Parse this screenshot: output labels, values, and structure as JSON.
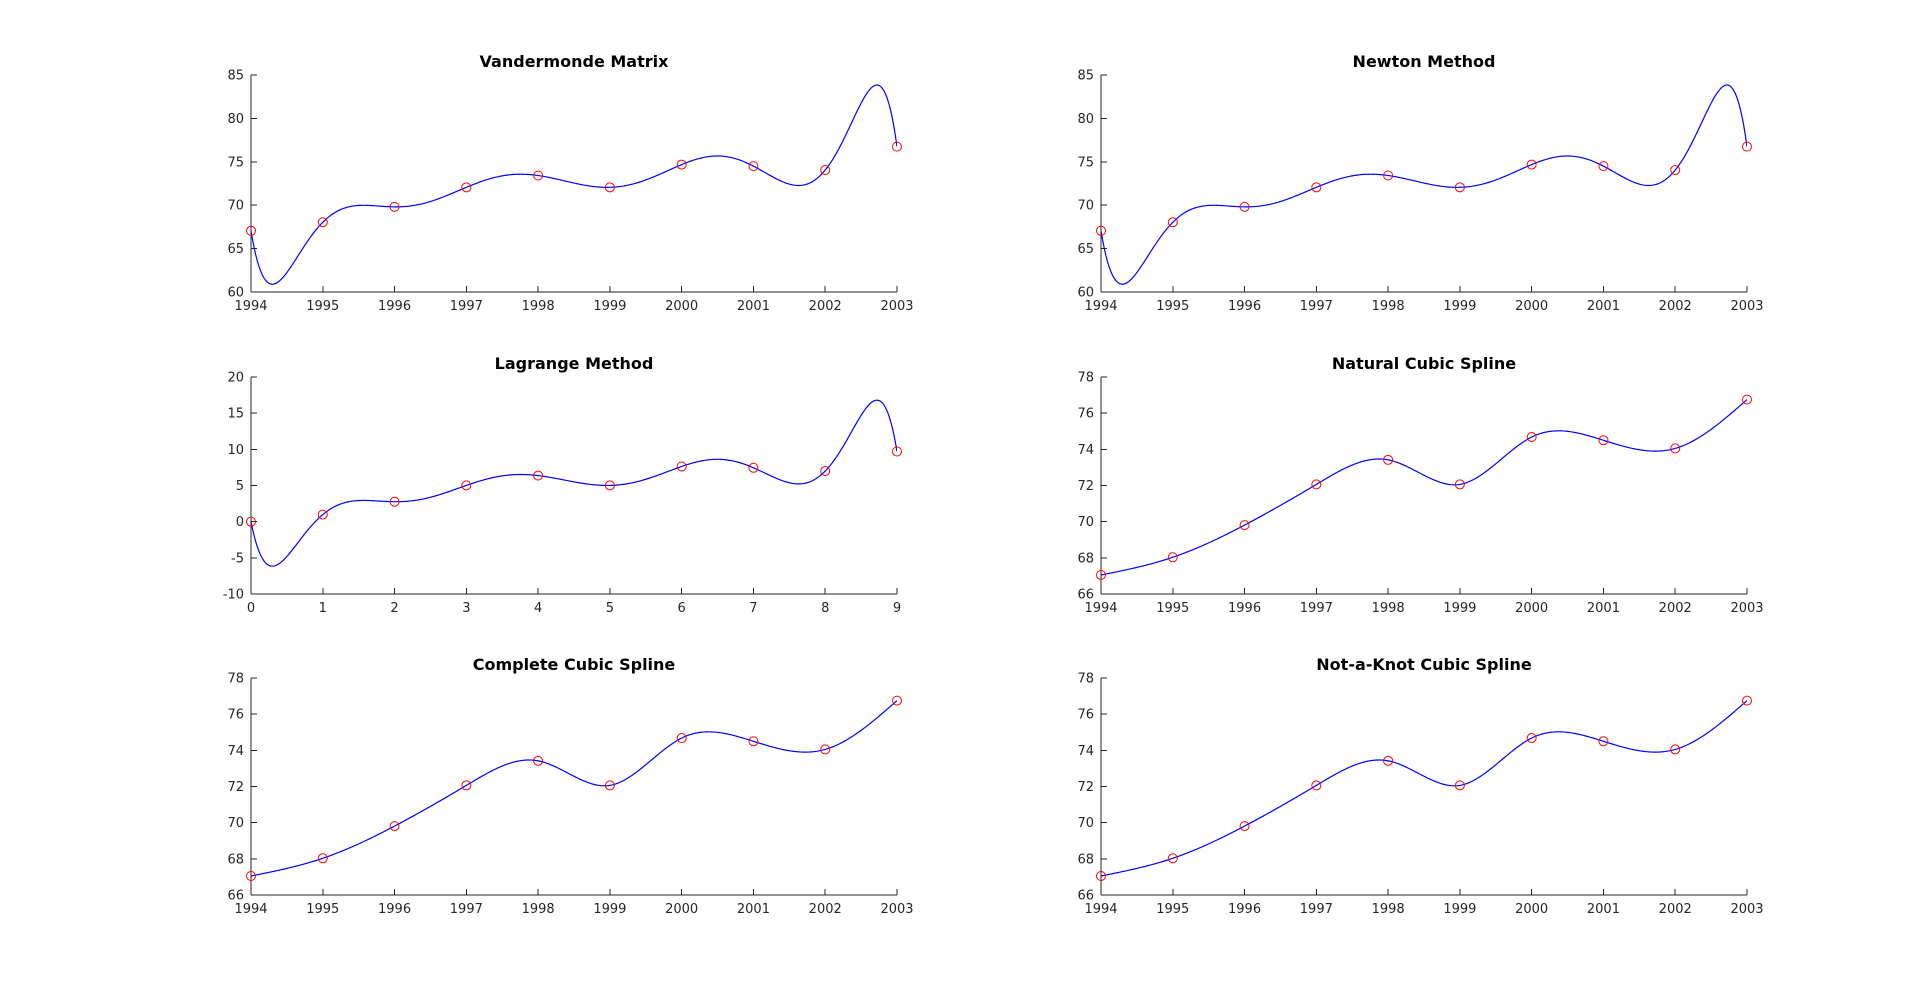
{
  "colors": {
    "curve": "#0000ff",
    "marker": "#ff0000",
    "axis": "#262626",
    "background": "#ffffff"
  },
  "chart_data": [
    {
      "type": "line",
      "title": "Vandermonde Matrix",
      "method": "polynomial",
      "x": [
        1994,
        1995,
        1996,
        1997,
        1998,
        1999,
        2000,
        2001,
        2002,
        2003
      ],
      "y": [
        67.05,
        68.03,
        69.81,
        72.06,
        73.42,
        72.06,
        74.68,
        74.5,
        74.05,
        76.75
      ],
      "xlim": [
        1994,
        2003
      ],
      "ylim": [
        60,
        85
      ],
      "xticks": [
        1994,
        1995,
        1996,
        1997,
        1998,
        1999,
        2000,
        2001,
        2002,
        2003
      ],
      "yticks": [
        60,
        65,
        70,
        75,
        80,
        85
      ],
      "markers": "circle",
      "grid": false
    },
    {
      "type": "line",
      "title": "Newton Method",
      "method": "polynomial",
      "x": [
        1994,
        1995,
        1996,
        1997,
        1998,
        1999,
        2000,
        2001,
        2002,
        2003
      ],
      "y": [
        67.05,
        68.03,
        69.81,
        72.06,
        73.42,
        72.06,
        74.68,
        74.5,
        74.05,
        76.75
      ],
      "xlim": [
        1994,
        2003
      ],
      "ylim": [
        60,
        85
      ],
      "xticks": [
        1994,
        1995,
        1996,
        1997,
        1998,
        1999,
        2000,
        2001,
        2002,
        2003
      ],
      "yticks": [
        60,
        65,
        70,
        75,
        80,
        85
      ],
      "markers": "circle",
      "grid": false
    },
    {
      "type": "line",
      "title": "Lagrange Method",
      "method": "polynomial",
      "x": [
        0,
        1,
        2,
        3,
        4,
        5,
        6,
        7,
        8,
        9
      ],
      "y": [
        0,
        0.98,
        2.76,
        5.01,
        6.37,
        5.01,
        7.63,
        7.45,
        7.0,
        9.7
      ],
      "xlim": [
        0,
        9
      ],
      "ylim": [
        -10,
        20
      ],
      "xticks": [
        0,
        1,
        2,
        3,
        4,
        5,
        6,
        7,
        8,
        9
      ],
      "yticks": [
        -10,
        -5,
        0,
        5,
        10,
        15,
        20
      ],
      "markers": "circle",
      "grid": false
    },
    {
      "type": "line",
      "title": "Natural Cubic Spline",
      "method": "natural",
      "x": [
        1994,
        1995,
        1996,
        1997,
        1998,
        1999,
        2000,
        2001,
        2002,
        2003
      ],
      "y": [
        67.05,
        68.03,
        69.81,
        72.06,
        73.42,
        72.06,
        74.68,
        74.5,
        74.05,
        76.75
      ],
      "xlim": [
        1994,
        2003
      ],
      "ylim": [
        66,
        78
      ],
      "xticks": [
        1994,
        1995,
        1996,
        1997,
        1998,
        1999,
        2000,
        2001,
        2002,
        2003
      ],
      "yticks": [
        66,
        68,
        70,
        72,
        74,
        76,
        78
      ],
      "markers": "circle",
      "grid": false
    },
    {
      "type": "line",
      "title": "Complete Cubic Spline",
      "method": "natural",
      "x": [
        1994,
        1995,
        1996,
        1997,
        1998,
        1999,
        2000,
        2001,
        2002,
        2003
      ],
      "y": [
        67.05,
        68.03,
        69.81,
        72.06,
        73.42,
        72.06,
        74.68,
        74.5,
        74.05,
        76.75
      ],
      "xlim": [
        1994,
        2003
      ],
      "ylim": [
        66,
        78
      ],
      "xticks": [
        1994,
        1995,
        1996,
        1997,
        1998,
        1999,
        2000,
        2001,
        2002,
        2003
      ],
      "yticks": [
        66,
        68,
        70,
        72,
        74,
        76,
        78
      ],
      "markers": "circle",
      "grid": false
    },
    {
      "type": "line",
      "title": "Not-a-Knot Cubic Spline",
      "method": "natural",
      "x": [
        1994,
        1995,
        1996,
        1997,
        1998,
        1999,
        2000,
        2001,
        2002,
        2003
      ],
      "y": [
        67.05,
        68.03,
        69.81,
        72.06,
        73.42,
        72.06,
        74.68,
        74.5,
        74.05,
        76.75
      ],
      "xlim": [
        1994,
        2003
      ],
      "ylim": [
        66,
        78
      ],
      "xticks": [
        1994,
        1995,
        1996,
        1997,
        1998,
        1999,
        2000,
        2001,
        2002,
        2003
      ],
      "yticks": [
        66,
        68,
        70,
        72,
        74,
        76,
        78
      ],
      "markers": "circle",
      "grid": false
    }
  ]
}
